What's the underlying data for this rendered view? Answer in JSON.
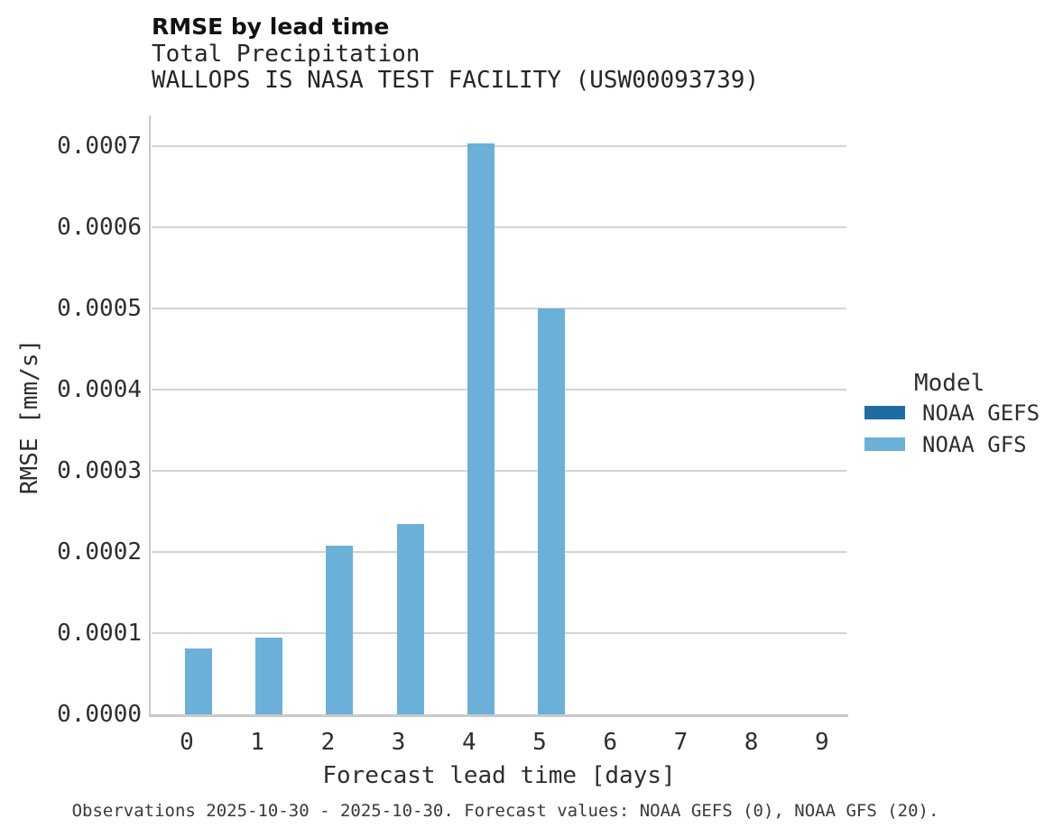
{
  "chart_data": {
    "type": "bar",
    "title": "RMSE by lead time",
    "subtitle": "Total Precipitation",
    "station": "WALLOPS IS NASA TEST FACILITY (USW00093739)",
    "xlabel": "Forecast lead time [days]",
    "ylabel": "RMSE [mm/s]",
    "categories": [
      "0",
      "1",
      "2",
      "3",
      "4",
      "5",
      "6",
      "7",
      "8",
      "9"
    ],
    "series": [
      {
        "name": "NOAA GEFS",
        "color": "#1e6da2",
        "values": [
          0,
          0,
          0,
          0,
          0,
          0,
          0,
          0,
          0,
          0
        ]
      },
      {
        "name": "NOAA GFS",
        "color": "#6bb0d8",
        "values": [
          8.1e-05,
          9.4e-05,
          0.000208,
          0.000234,
          0.000703,
          0.0005,
          0,
          0,
          0,
          0
        ]
      }
    ],
    "ylim": [
      0,
      0.00074
    ],
    "yticks": [
      {
        "value": 0.0,
        "label": "0.0000"
      },
      {
        "value": 0.0001,
        "label": "0.0001"
      },
      {
        "value": 0.0002,
        "label": "0.0002"
      },
      {
        "value": 0.0003,
        "label": "0.0003"
      },
      {
        "value": 0.0004,
        "label": "0.0004"
      },
      {
        "value": 0.0005,
        "label": "0.0005"
      },
      {
        "value": 0.0006,
        "label": "0.0006"
      },
      {
        "value": 0.0007,
        "label": "0.0007"
      }
    ],
    "grid": "horizontal",
    "legend_title": "Model",
    "legend_position": "right",
    "footer": "Observations 2025-10-30 - 2025-10-30. Forecast values: NOAA GEFS (0), NOAA GFS (20)."
  },
  "colors": {
    "gridline": "#d4d4d4",
    "axis": "#c9c9c9",
    "background": "#ffffff"
  }
}
